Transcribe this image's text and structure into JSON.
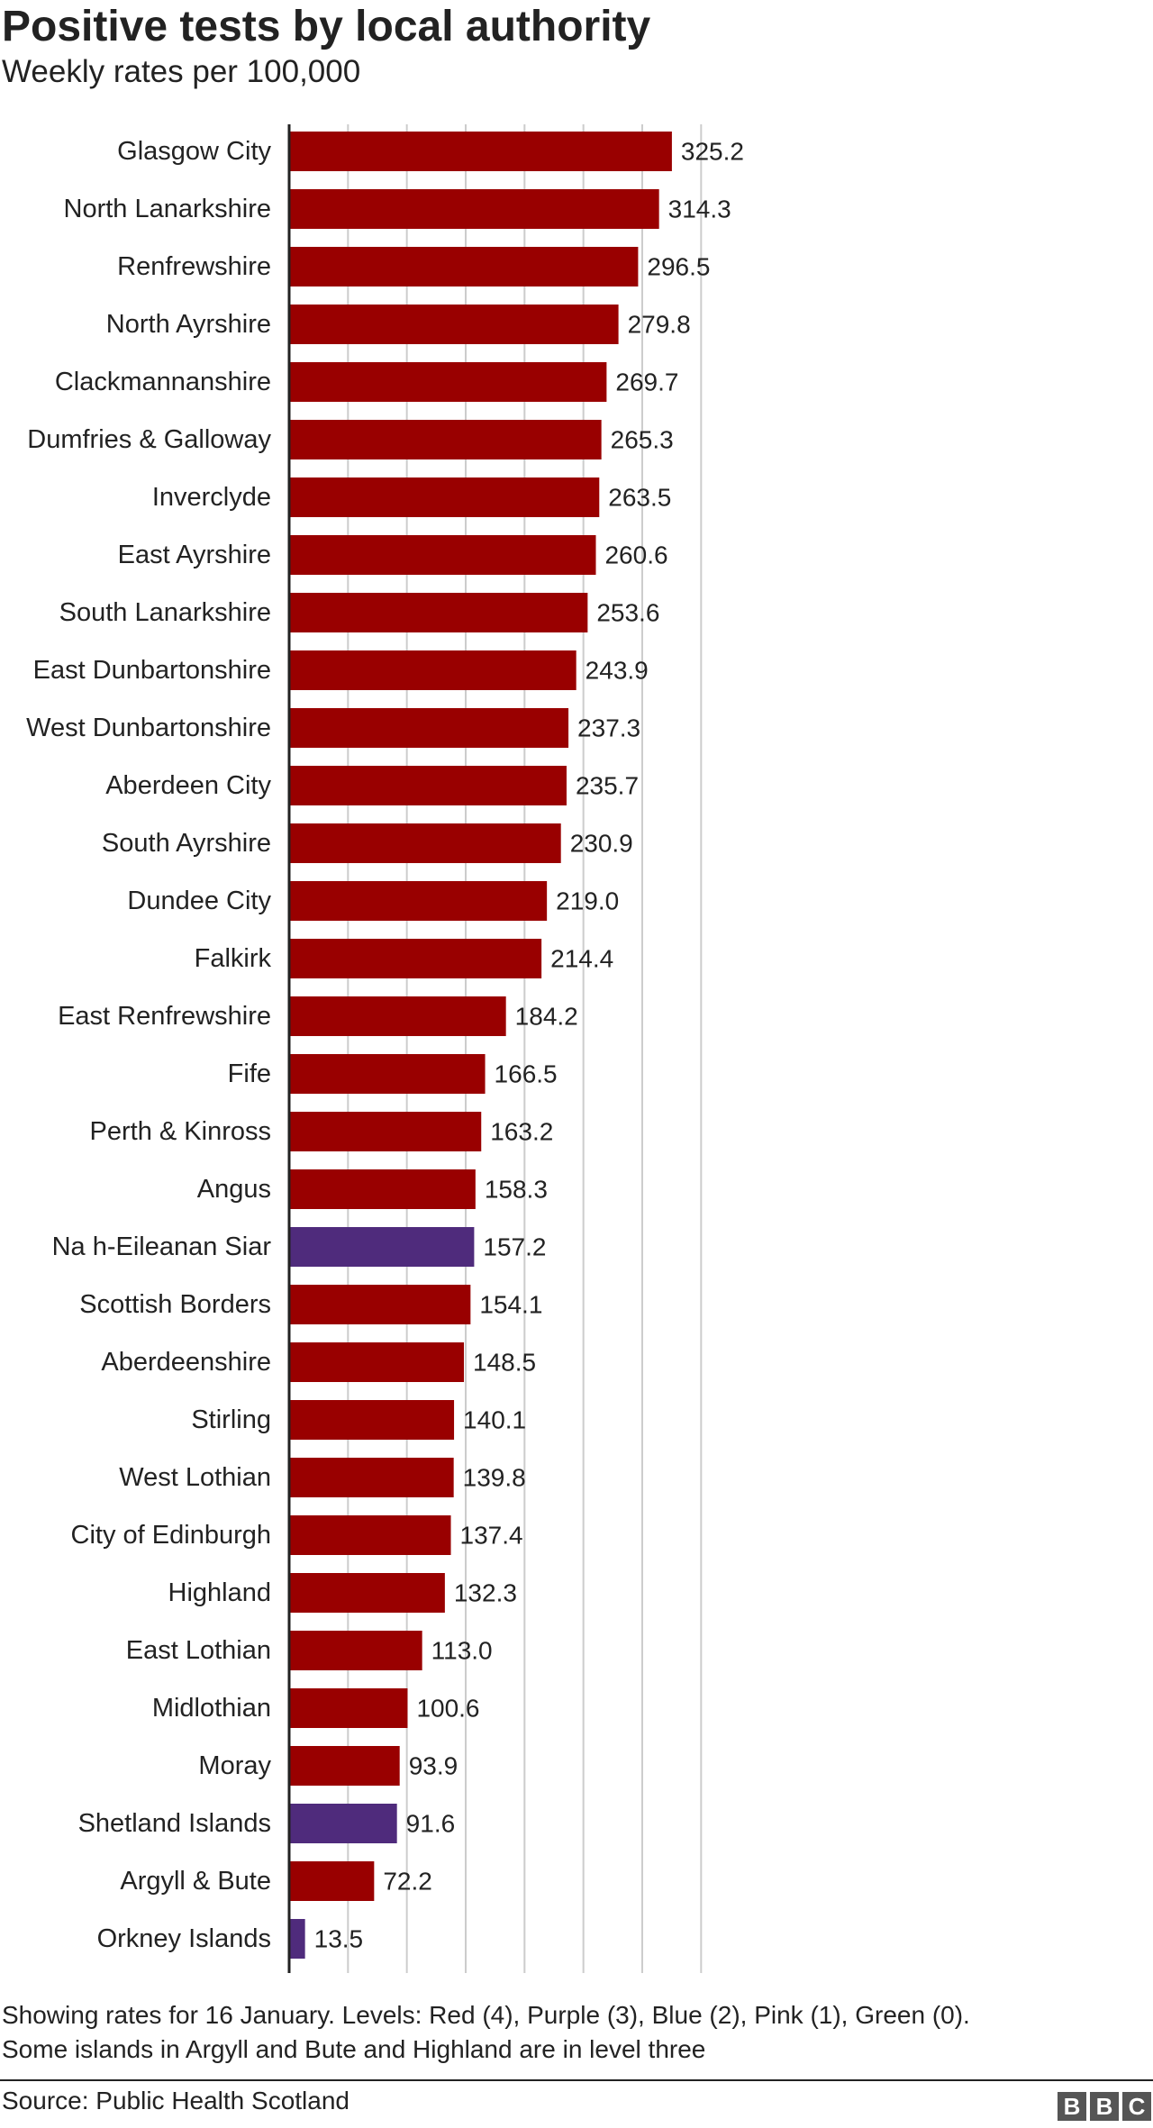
{
  "chart_data": {
    "type": "bar",
    "orientation": "horizontal",
    "title": "Positive tests by local authority",
    "subtitle": "Weekly rates per 100,000",
    "xlim": [
      0,
      350
    ],
    "grid": true,
    "categories": [
      "Glasgow City",
      "North Lanarkshire",
      "Renfrewshire",
      "North Ayrshire",
      "Clackmannanshire",
      "Dumfries & Galloway",
      "Inverclyde",
      "East Ayrshire",
      "South Lanarkshire",
      "East Dunbartonshire",
      "West Dunbartonshire",
      "Aberdeen City",
      "South Ayrshire",
      "Dundee City",
      "Falkirk",
      "East Renfrewshire",
      "Fife",
      "Perth & Kinross",
      "Angus",
      "Na h-Eileanan Siar",
      "Scottish Borders",
      "Aberdeenshire",
      "Stirling",
      "West Lothian",
      "City of Edinburgh",
      "Highland",
      "East Lothian",
      "Midlothian",
      "Moray",
      "Shetland Islands",
      "Argyll & Bute",
      "Orkney Islands"
    ],
    "values": [
      325.2,
      314.3,
      296.5,
      279.8,
      269.7,
      265.3,
      263.5,
      260.6,
      253.6,
      243.9,
      237.3,
      235.7,
      230.9,
      219.0,
      214.4,
      184.2,
      166.5,
      163.2,
      158.3,
      157.2,
      154.1,
      148.5,
      140.1,
      139.8,
      137.4,
      132.3,
      113.0,
      100.6,
      93.9,
      91.6,
      72.2,
      13.5
    ],
    "value_labels": [
      "325.2",
      "314.3",
      "296.5",
      "279.8",
      "269.7",
      "265.3",
      "263.5",
      "260.6",
      "253.6",
      "243.9",
      "237.3",
      "235.7",
      "230.9",
      "219.0",
      "214.4",
      "184.2",
      "166.5",
      "163.2",
      "158.3",
      "157.2",
      "154.1",
      "148.5",
      "140.1",
      "139.8",
      "137.4",
      "132.3",
      "113.0",
      "100.6",
      "93.9",
      "91.6",
      "72.2",
      "13.5"
    ],
    "levels": [
      "red",
      "red",
      "red",
      "red",
      "red",
      "red",
      "red",
      "red",
      "red",
      "red",
      "red",
      "red",
      "red",
      "red",
      "red",
      "red",
      "red",
      "red",
      "red",
      "purple",
      "red",
      "red",
      "red",
      "red",
      "red",
      "red",
      "red",
      "red",
      "red",
      "purple",
      "red",
      "purple"
    ],
    "colors": {
      "red": "#990000",
      "purple": "#4f2b7c"
    }
  },
  "footnote_lines": [
    "Showing rates for 16 January. Levels: Red (4), Purple (3), Blue (2), Pink (1), Green (0).",
    "Some islands in Argyll and Bute and Highland are in level three"
  ],
  "source": "Source: Public Health Scotland",
  "logo": [
    "B",
    "B",
    "C"
  ]
}
